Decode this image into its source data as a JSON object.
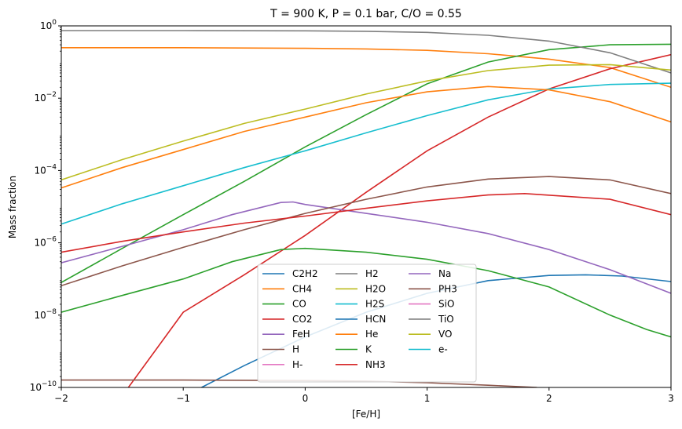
{
  "chart_data": {
    "type": "line",
    "title": "T = 900 K, P = 0.1 bar, C/O = 0.55",
    "xlabel": "[Fe/H]",
    "ylabel": "Mass fraction",
    "xlim": [
      -2,
      3
    ],
    "ylim": [
      1e-10,
      1
    ],
    "yscale": "log",
    "grid": false,
    "legend_position": "bottom-center",
    "legend_columns": 3,
    "x_ticks": [
      {
        "v": -2,
        "label": "−2"
      },
      {
        "v": -1,
        "label": "−1"
      },
      {
        "v": 0,
        "label": "0"
      },
      {
        "v": 1,
        "label": "1"
      },
      {
        "v": 2,
        "label": "2"
      },
      {
        "v": 3,
        "label": "3"
      }
    ],
    "y_ticks": [
      {
        "exp": 0,
        "label": "10",
        "sup": "0"
      },
      {
        "exp": -2,
        "label": "10",
        "sup": "−2"
      },
      {
        "exp": -4,
        "label": "10",
        "sup": "−4"
      },
      {
        "exp": -6,
        "label": "10",
        "sup": "−6"
      },
      {
        "exp": -8,
        "label": "10",
        "sup": "−8"
      },
      {
        "exp": -10,
        "label": "10",
        "sup": "−10"
      }
    ],
    "series": [
      {
        "name": "C2H2",
        "color": "#1f77b4",
        "points": [
          [
            -0.85,
            1e-10
          ],
          [
            -0.5,
            4e-10
          ],
          [
            0,
            2.5e-09
          ],
          [
            0.5,
            1.2e-08
          ],
          [
            1,
            4e-08
          ],
          [
            1.5,
            9e-08
          ],
          [
            2,
            1.25e-07
          ],
          [
            2.3,
            1.3e-07
          ],
          [
            2.6,
            1.2e-07
          ],
          [
            3,
            8.5e-08
          ]
        ]
      },
      {
        "name": "CH4",
        "color": "#ff7f0e",
        "points": [
          [
            -2,
            0.25
          ],
          [
            -1,
            0.25
          ],
          [
            0,
            0.24
          ],
          [
            0.5,
            0.23
          ],
          [
            1,
            0.21
          ],
          [
            1.5,
            0.17
          ],
          [
            2,
            0.12
          ],
          [
            2.5,
            0.07
          ],
          [
            3,
            0.02
          ]
        ]
      },
      {
        "name": "CO",
        "color": "#2ca02c",
        "points": [
          [
            -2,
            8e-08
          ],
          [
            -1.5,
            7e-07
          ],
          [
            -1,
            6e-06
          ],
          [
            -0.5,
            5e-05
          ],
          [
            0,
            0.00045
          ],
          [
            0.5,
            0.0035
          ],
          [
            1,
            0.025
          ],
          [
            1.5,
            0.1
          ],
          [
            2,
            0.22
          ],
          [
            2.5,
            0.3
          ],
          [
            3,
            0.31
          ]
        ]
      },
      {
        "name": "CO2",
        "color": "#d62728",
        "points": [
          [
            -1.45,
            1e-10
          ],
          [
            -1,
            1.2e-08
          ],
          [
            -0.5,
            1.3e-07
          ],
          [
            0,
            1.6e-06
          ],
          [
            0.5,
            2.5e-05
          ],
          [
            1,
            0.00035
          ],
          [
            1.5,
            0.003
          ],
          [
            2,
            0.018
          ],
          [
            2.5,
            0.065
          ],
          [
            3,
            0.16
          ]
        ]
      },
      {
        "name": "FeH",
        "color": "#9467bd",
        "points": [
          [
            -2,
            2.8e-07
          ],
          [
            -1.5,
            8e-07
          ],
          [
            -1,
            2.3e-06
          ],
          [
            -0.6,
            6e-06
          ],
          [
            -0.2,
            1.3e-05
          ],
          [
            -0.1,
            1.35e-05
          ],
          [
            0,
            1.15e-05
          ],
          [
            0.5,
            6.5e-06
          ],
          [
            1,
            3.7e-06
          ],
          [
            1.5,
            1.8e-06
          ],
          [
            2,
            6.5e-07
          ],
          [
            2.5,
            1.8e-07
          ],
          [
            3,
            4e-08
          ]
        ]
      },
      {
        "name": "H",
        "color": "#8c564b",
        "points": [
          [
            -2,
            6.5e-08
          ],
          [
            -1.5,
            2.3e-07
          ],
          [
            -1,
            7.5e-07
          ],
          [
            -0.5,
            2.3e-06
          ],
          [
            0,
            6.5e-06
          ],
          [
            0.5,
            1.6e-05
          ],
          [
            1,
            3.5e-05
          ],
          [
            1.5,
            5.8e-05
          ],
          [
            2,
            6.8e-05
          ],
          [
            2.5,
            5.5e-05
          ],
          [
            3,
            2.3e-05
          ]
        ]
      },
      {
        "name": "H-",
        "color": "#e377c2",
        "points": []
      },
      {
        "name": "H2",
        "color": "#7f7f7f",
        "points": [
          [
            -2,
            0.74
          ],
          [
            -1,
            0.74
          ],
          [
            0,
            0.73
          ],
          [
            0.5,
            0.71
          ],
          [
            1,
            0.66
          ],
          [
            1.5,
            0.55
          ],
          [
            2,
            0.38
          ],
          [
            2.5,
            0.18
          ],
          [
            3,
            0.05
          ]
        ]
      },
      {
        "name": "H2O",
        "color": "#bcbd22",
        "points": [
          [
            -2,
            5.5e-05
          ],
          [
            -1.5,
            0.0002
          ],
          [
            -1,
            0.00065
          ],
          [
            -0.5,
            0.002
          ],
          [
            0,
            0.005
          ],
          [
            0.5,
            0.013
          ],
          [
            1,
            0.03
          ],
          [
            1.5,
            0.058
          ],
          [
            2,
            0.082
          ],
          [
            2.5,
            0.085
          ],
          [
            3,
            0.06
          ]
        ]
      },
      {
        "name": "H2S",
        "color": "#17becf",
        "points": [
          [
            -2,
            3.3e-06
          ],
          [
            -1.5,
            1.2e-05
          ],
          [
            -1,
            3.8e-05
          ],
          [
            -0.5,
            0.00012
          ],
          [
            0,
            0.00035
          ],
          [
            0.5,
            0.0011
          ],
          [
            1,
            0.0033
          ],
          [
            1.5,
            0.009
          ],
          [
            2,
            0.018
          ],
          [
            2.5,
            0.024
          ],
          [
            3,
            0.026
          ]
        ]
      },
      {
        "name": "HCN",
        "color": "#1f77b4",
        "points": []
      },
      {
        "name": "He",
        "color": "#ff7f0e",
        "points": [
          [
            -2,
            3.3e-05
          ],
          [
            -1.5,
            0.00012
          ],
          [
            -1,
            0.00038
          ],
          [
            -0.5,
            0.0012
          ],
          [
            0,
            0.003
          ],
          [
            0.5,
            0.0075
          ],
          [
            1,
            0.015
          ],
          [
            1.5,
            0.021
          ],
          [
            2,
            0.017
          ],
          [
            2.5,
            0.008
          ],
          [
            3,
            0.0022
          ]
        ]
      },
      {
        "name": "K",
        "color": "#2ca02c",
        "points": [
          [
            -2,
            1.2e-08
          ],
          [
            -1.5,
            3.5e-08
          ],
          [
            -1,
            1e-07
          ],
          [
            -0.6,
            3e-07
          ],
          [
            -0.2,
            6.5e-07
          ],
          [
            0,
            7e-07
          ],
          [
            0.5,
            5.5e-07
          ],
          [
            1,
            3.5e-07
          ],
          [
            1.5,
            1.7e-07
          ],
          [
            2,
            6e-08
          ],
          [
            2.5,
            1e-08
          ],
          [
            2.8,
            4e-09
          ],
          [
            3,
            2.5e-09
          ]
        ]
      },
      {
        "name": "NH3",
        "color": "#d62728",
        "points": [
          [
            -2,
            5.5e-07
          ],
          [
            -1.5,
            1.1e-06
          ],
          [
            -1,
            2e-06
          ],
          [
            -0.5,
            3.5e-06
          ],
          [
            0,
            5.5e-06
          ],
          [
            0.5,
            9e-06
          ],
          [
            1,
            1.45e-05
          ],
          [
            1.5,
            2.1e-05
          ],
          [
            1.8,
            2.3e-05
          ],
          [
            2.5,
            1.6e-05
          ],
          [
            3,
            6e-06
          ]
        ]
      },
      {
        "name": "Na",
        "color": "#9467bd",
        "points": []
      },
      {
        "name": "PH3",
        "color": "#8c564b",
        "points": [
          [
            -2,
            1.6e-10
          ],
          [
            -1,
            1.6e-10
          ],
          [
            0,
            1.55e-10
          ],
          [
            0.5,
            1.5e-10
          ],
          [
            1,
            1.35e-10
          ],
          [
            1.5,
            1.15e-10
          ],
          [
            1.9,
            1e-10
          ]
        ]
      },
      {
        "name": "SiO",
        "color": "#e377c2",
        "points": []
      },
      {
        "name": "TiO",
        "color": "#7f7f7f",
        "points": []
      },
      {
        "name": "VO",
        "color": "#bcbd22",
        "points": []
      },
      {
        "name": "e-",
        "color": "#17becf",
        "points": []
      }
    ]
  }
}
